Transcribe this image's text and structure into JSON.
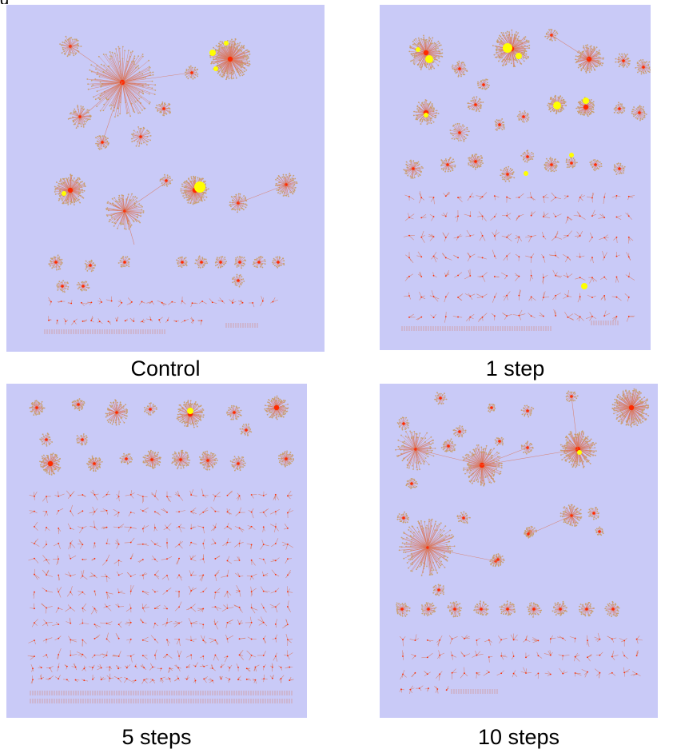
{
  "figure": {
    "label": "g",
    "panels": [
      {
        "id": "control",
        "caption": "Control"
      },
      {
        "id": "step1",
        "caption": "1 step"
      },
      {
        "id": "step5",
        "caption": "5 steps"
      },
      {
        "id": "step10",
        "caption": "10 steps"
      }
    ]
  },
  "colors": {
    "background": "#c9caf7",
    "edge": "#d9785f",
    "hub": "#ff2a00",
    "highlight": "#ffff00",
    "leaf": "#c8a070"
  }
}
